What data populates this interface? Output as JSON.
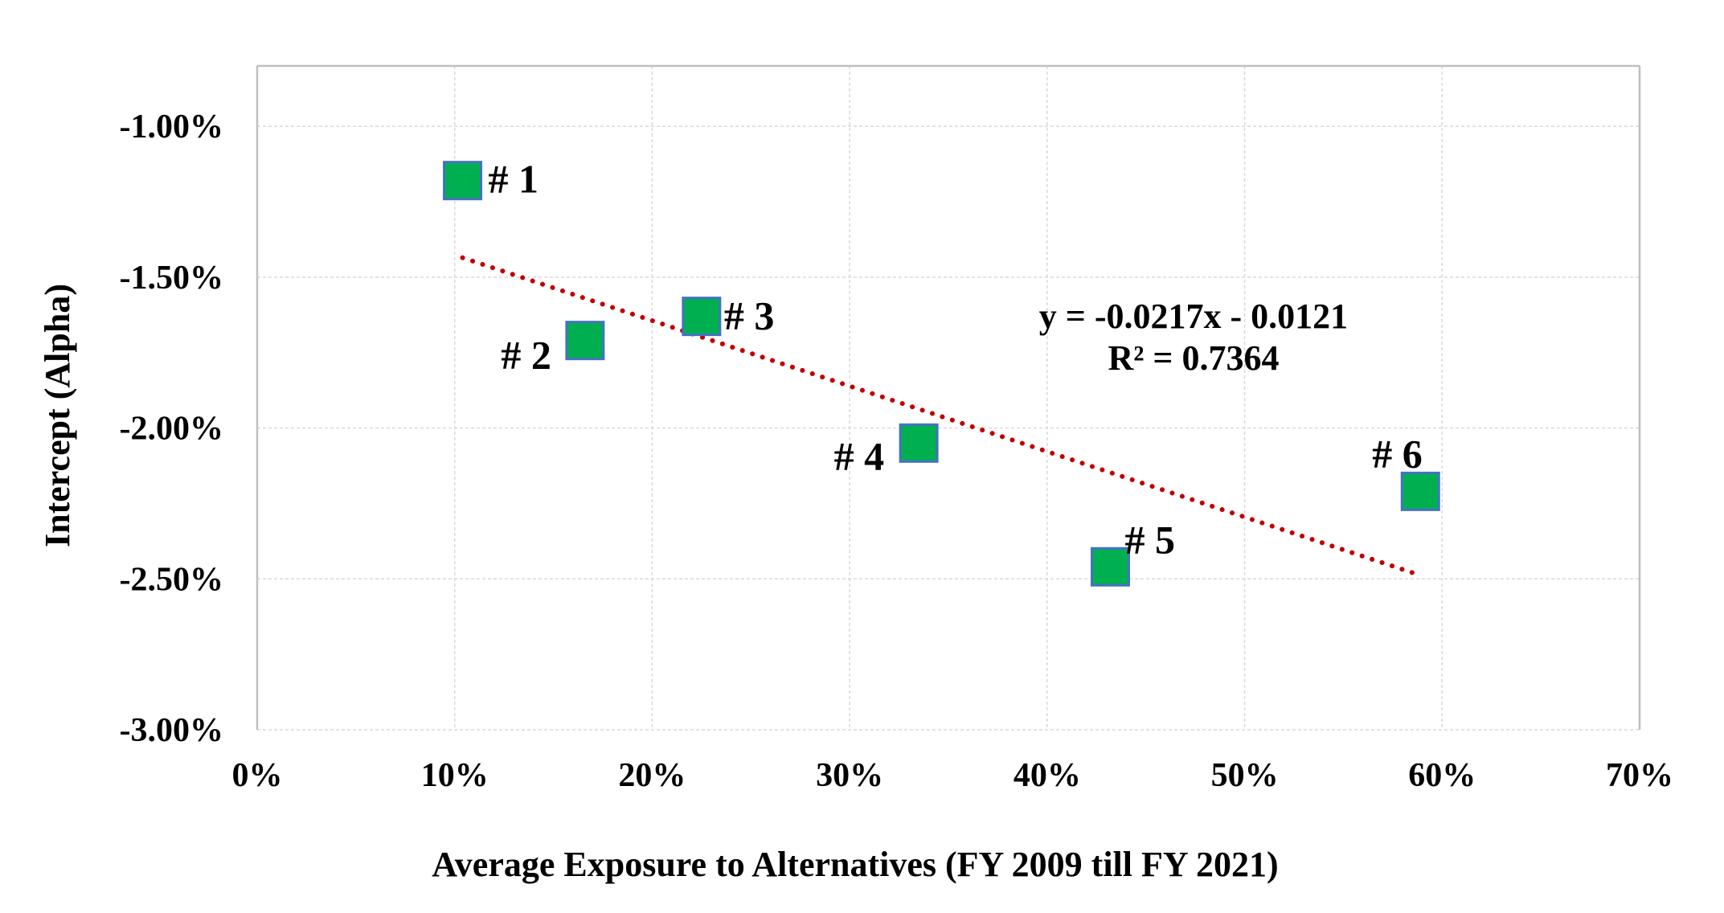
{
  "chart_data": {
    "type": "scatter",
    "title": "",
    "xlabel": "Average Exposure to Alternatives (FY 2009 till FY 2021)",
    "ylabel": "Intercept (Alpha)",
    "xlim": [
      0,
      0.7
    ],
    "ylim": [
      -0.03,
      -0.008
    ],
    "x_ticks": [
      0,
      0.1,
      0.2,
      0.3,
      0.4,
      0.5,
      0.6,
      0.7
    ],
    "x_tick_labels": [
      "0%",
      "10%",
      "20%",
      "30%",
      "40%",
      "50%",
      "60%",
      "70%"
    ],
    "y_ticks": [
      -0.01,
      -0.015,
      -0.02,
      -0.025,
      -0.03
    ],
    "y_tick_labels": [
      "-1.00%",
      "-1.50%",
      "-2.00%",
      "-2.50%",
      "-3.00%"
    ],
    "grid": true,
    "points": [
      {
        "label": "# 1",
        "x": 0.104,
        "y": -0.0118
      },
      {
        "label": "# 2",
        "x": 0.166,
        "y": -0.0171
      },
      {
        "label": "# 3",
        "x": 0.225,
        "y": -0.0163
      },
      {
        "label": "# 4",
        "x": 0.335,
        "y": -0.0205
      },
      {
        "label": "# 5",
        "x": 0.432,
        "y": -0.0246
      },
      {
        "label": "# 6",
        "x": 0.589,
        "y": -0.0221
      }
    ],
    "trendline": {
      "type": "linear",
      "slope": -0.0217,
      "intercept": -0.0121,
      "x_range": [
        0.104,
        0.589
      ],
      "equation_text": "y = -0.0217x - 0.0121",
      "r2_text": "R² = 0.7364"
    },
    "colors": {
      "marker_fill": "#00b050",
      "marker_border": "#4472c4",
      "trendline": "#c00000"
    }
  }
}
